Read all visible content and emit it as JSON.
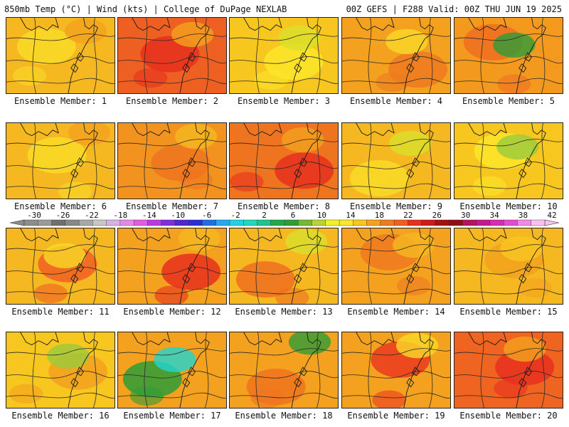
{
  "header": {
    "left": "850mb Temp (°C) | Wind (kts) | College of DuPage NEXLAB",
    "right": "00Z GEFS | F288 Valid: 00Z THU JUN 19 2025"
  },
  "caption_prefix": "Ensemble Member: ",
  "members": [
    {
      "label": "Ensemble Member: 1",
      "base": "#f5b820",
      "accents": [
        "#f9d928",
        "#f3a11e"
      ]
    },
    {
      "label": "Ensemble Member: 2",
      "base": "#ee5f22",
      "accents": [
        "#e6301f",
        "#f3a11e"
      ]
    },
    {
      "label": "Ensemble Member: 3",
      "base": "#f7c61f",
      "accents": [
        "#fbe62c",
        "#d9e02a"
      ]
    },
    {
      "label": "Ensemble Member: 4",
      "base": "#f3a11e",
      "accents": [
        "#ef7a20",
        "#f9d928"
      ]
    },
    {
      "label": "Ensemble Member: 5",
      "base": "#f39a1e",
      "accents": [
        "#ef6f21",
        "#2e9c37"
      ]
    },
    {
      "label": "Ensemble Member: 6",
      "base": "#f5b820",
      "accents": [
        "#f9d928",
        "#f3a11e"
      ]
    },
    {
      "label": "Ensemble Member: 7",
      "base": "#f29320",
      "accents": [
        "#ef7420",
        "#f5b820"
      ]
    },
    {
      "label": "Ensemble Member: 8",
      "base": "#ef7420",
      "accents": [
        "#e6301f",
        "#f3a11e"
      ]
    },
    {
      "label": "Ensemble Member: 9",
      "base": "#f5b820",
      "accents": [
        "#f9d928",
        "#d9e02a"
      ]
    },
    {
      "label": "Ensemble Member: 10",
      "base": "#f7c61f",
      "accents": [
        "#fbe62c",
        "#9acb3c"
      ]
    },
    {
      "label": "Ensemble Member: 11",
      "base": "#f5b820",
      "accents": [
        "#ef5f22",
        "#f9d928"
      ]
    },
    {
      "label": "Ensemble Member: 12",
      "base": "#f3a11e",
      "accents": [
        "#e6301f",
        "#f5b820"
      ]
    },
    {
      "label": "Ensemble Member: 13",
      "base": "#f5b820",
      "accents": [
        "#ef6f21",
        "#d9e02a"
      ]
    },
    {
      "label": "Ensemble Member: 14",
      "base": "#f3a11e",
      "accents": [
        "#ef7a20",
        "#f5b820"
      ]
    },
    {
      "label": "Ensemble Member: 15",
      "base": "#f5b820",
      "accents": [
        "#f3a11e",
        "#f7c61f"
      ]
    },
    {
      "label": "Ensemble Member: 16",
      "base": "#f7c61f",
      "accents": [
        "#f3a11e",
        "#9acb3c"
      ]
    },
    {
      "label": "Ensemble Member: 17",
      "base": "#f3a11e",
      "accents": [
        "#2e9c37",
        "#1fd6d2"
      ]
    },
    {
      "label": "Ensemble Member: 18",
      "base": "#f3a11e",
      "accents": [
        "#ef7420",
        "#2e9c37"
      ]
    },
    {
      "label": "Ensemble Member: 19",
      "base": "#f3a11e",
      "accents": [
        "#ea3b1f",
        "#f9d928"
      ]
    },
    {
      "label": "Ensemble Member: 20",
      "base": "#ef6421",
      "accents": [
        "#e6301f",
        "#f3a11e"
      ]
    }
  ],
  "colorbar": {
    "labels": [
      "-30",
      "-26",
      "-22",
      "-18",
      "-14",
      "-10",
      "-6",
      "-2",
      "2",
      "6",
      "10",
      "14",
      "18",
      "22",
      "26",
      "30",
      "34",
      "38",
      "42"
    ],
    "colors": [
      "#8c8c8c",
      "#9a9a9a",
      "#6f6f6f",
      "#888888",
      "#a8a8a8",
      "#c7c7c7",
      "#d7b0e6",
      "#e489e8",
      "#e25be0",
      "#b73be0",
      "#7d2fd8",
      "#5226c9",
      "#2b2fd1",
      "#1d6fe0",
      "#28a6f0",
      "#21d1e6",
      "#22d6bb",
      "#1fc48c",
      "#22a84c",
      "#2e9c37",
      "#74b833",
      "#b8d237",
      "#f3ef2a",
      "#fbe62c",
      "#f7c61f",
      "#f3a11e",
      "#ef7a20",
      "#ef5f22",
      "#e6301f",
      "#cf1a1a",
      "#a31212",
      "#8f1010",
      "#b3155e",
      "#c21a8c",
      "#d62ab2",
      "#e54bd0",
      "#f08ae3",
      "#f6c0ef"
    ]
  }
}
